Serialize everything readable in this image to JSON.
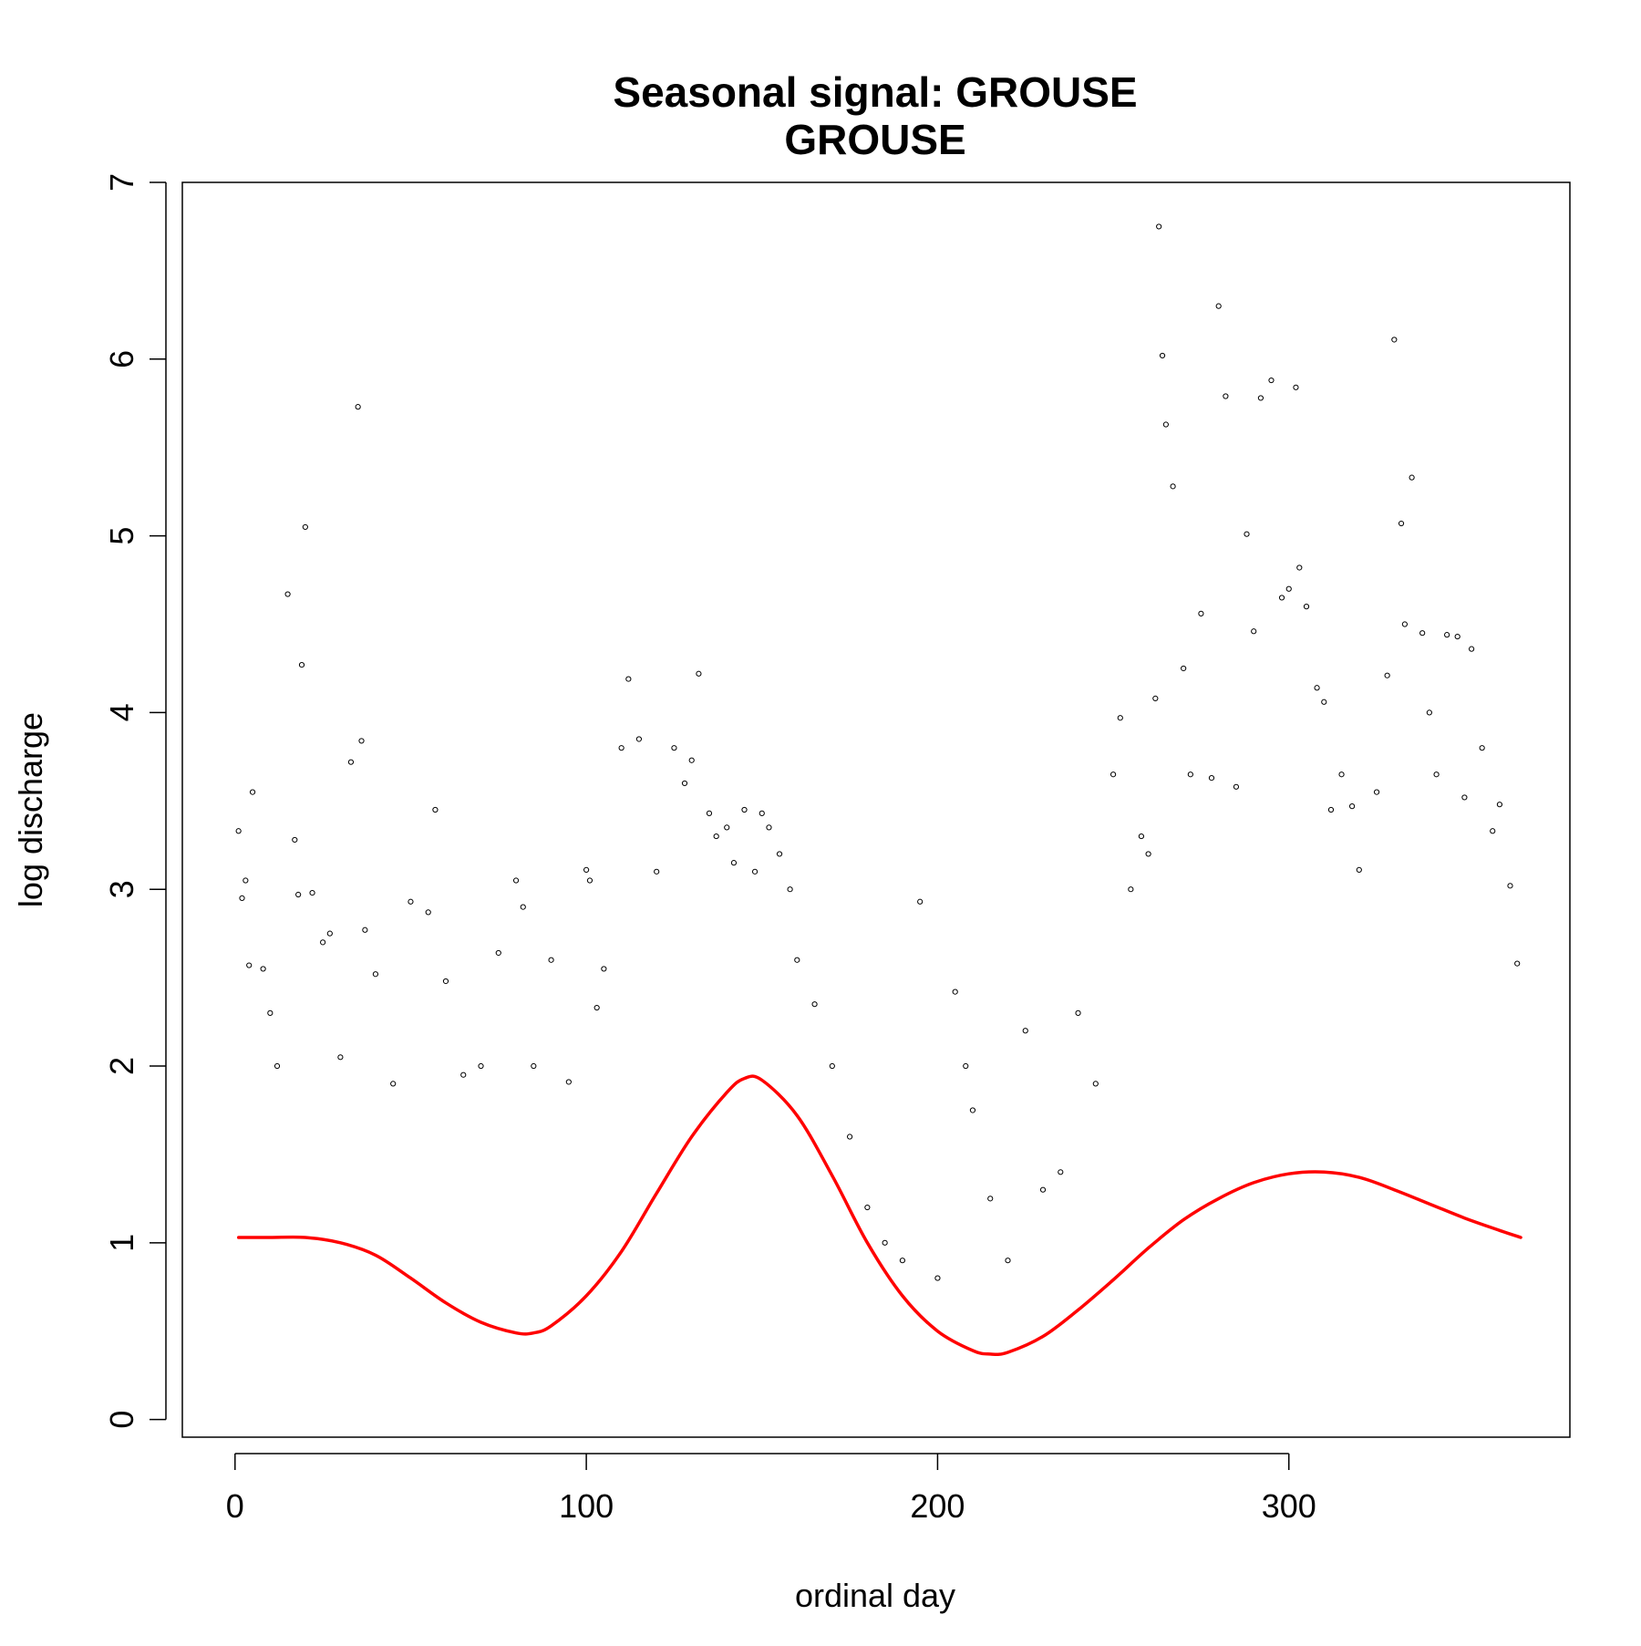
{
  "chart_data": {
    "type": "scatter",
    "title": "Seasonal signal: GROUSE",
    "subtitle": "GROUSE",
    "xlabel": "ordinal day",
    "ylabel": "log discharge",
    "xlim": [
      -15,
      380
    ],
    "ylim": [
      -0.1,
      7.0
    ],
    "x_ticks": [
      0,
      100,
      200,
      300
    ],
    "y_ticks": [
      0,
      1,
      2,
      3,
      4,
      5,
      6,
      7
    ],
    "grid": false,
    "legend": "none",
    "series": [
      {
        "kind": "points",
        "marker": "open-circle",
        "color": "#000000",
        "note_points_sample": true,
        "x": [
          1,
          2,
          3,
          4,
          5,
          8,
          10,
          12,
          15,
          17,
          18,
          19,
          20,
          22,
          25,
          27,
          30,
          33,
          35,
          36,
          37,
          40,
          45,
          50,
          55,
          57,
          60,
          65,
          70,
          75,
          80,
          82,
          85,
          90,
          95,
          100,
          101,
          103,
          105,
          110,
          112,
          115,
          120,
          125,
          128,
          130,
          132,
          135,
          137,
          140,
          142,
          145,
          148,
          150,
          152,
          155,
          158,
          160,
          165,
          170,
          175,
          180,
          185,
          190,
          195,
          200,
          205,
          208,
          210,
          215,
          220,
          225,
          230,
          235,
          240,
          245,
          250,
          252,
          255,
          258,
          260,
          262,
          263,
          264,
          265,
          267,
          270,
          272,
          275,
          278,
          280,
          282,
          285,
          288,
          290,
          292,
          295,
          298,
          300,
          302,
          303,
          305,
          308,
          310,
          312,
          315,
          318,
          320,
          325,
          328,
          330,
          332,
          333,
          335,
          338,
          340,
          342,
          345,
          348,
          350,
          352,
          355,
          358,
          360,
          363,
          365
        ],
        "y": [
          3.33,
          2.95,
          3.05,
          2.57,
          3.55,
          2.55,
          2.3,
          2.0,
          4.67,
          3.28,
          2.97,
          4.27,
          5.05,
          2.98,
          2.7,
          2.75,
          2.05,
          3.72,
          5.73,
          3.84,
          2.77,
          2.52,
          1.9,
          2.93,
          2.87,
          3.45,
          2.48,
          1.95,
          2.0,
          2.64,
          3.05,
          2.9,
          2.0,
          2.6,
          1.91,
          3.11,
          3.05,
          2.33,
          2.55,
          3.8,
          4.19,
          3.85,
          3.1,
          3.8,
          3.6,
          3.73,
          4.22,
          3.43,
          3.3,
          3.35,
          3.15,
          3.45,
          3.1,
          3.43,
          3.35,
          3.2,
          3.0,
          2.6,
          2.35,
          2.0,
          1.6,
          1.2,
          1.0,
          0.9,
          2.93,
          0.8,
          2.42,
          2.0,
          1.75,
          1.25,
          0.9,
          2.2,
          1.3,
          1.4,
          2.3,
          1.9,
          3.65,
          3.97,
          3.0,
          3.3,
          3.2,
          4.08,
          6.75,
          6.02,
          5.63,
          5.28,
          4.25,
          3.65,
          4.56,
          3.63,
          6.3,
          5.79,
          3.58,
          5.01,
          4.46,
          5.78,
          5.88,
          4.65,
          4.7,
          5.84,
          4.82,
          4.6,
          4.14,
          4.06,
          3.45,
          3.65,
          3.47,
          3.11,
          3.55,
          4.21,
          6.11,
          5.07,
          4.5,
          5.33,
          4.45,
          4.0,
          3.65,
          4.44,
          4.43,
          3.52,
          4.36,
          3.8,
          3.33,
          3.48,
          3.02,
          2.58
        ]
      },
      {
        "kind": "line",
        "color": "#ff0000",
        "name": "",
        "x": [
          1,
          10,
          20,
          30,
          40,
          50,
          60,
          70,
          80,
          85,
          90,
          100,
          110,
          120,
          130,
          140,
          145,
          150,
          160,
          170,
          180,
          190,
          200,
          210,
          215,
          220,
          230,
          240,
          250,
          260,
          270,
          280,
          290,
          300,
          310,
          320,
          330,
          340,
          350,
          360,
          366
        ],
        "y": [
          1.03,
          1.03,
          1.03,
          1.0,
          0.93,
          0.8,
          0.66,
          0.55,
          0.49,
          0.49,
          0.53,
          0.7,
          0.95,
          1.28,
          1.6,
          1.85,
          1.93,
          1.92,
          1.72,
          1.38,
          1.0,
          0.7,
          0.5,
          0.39,
          0.37,
          0.38,
          0.47,
          0.62,
          0.79,
          0.97,
          1.13,
          1.25,
          1.34,
          1.39,
          1.4,
          1.37,
          1.3,
          1.22,
          1.14,
          1.07,
          1.03
        ]
      }
    ]
  }
}
